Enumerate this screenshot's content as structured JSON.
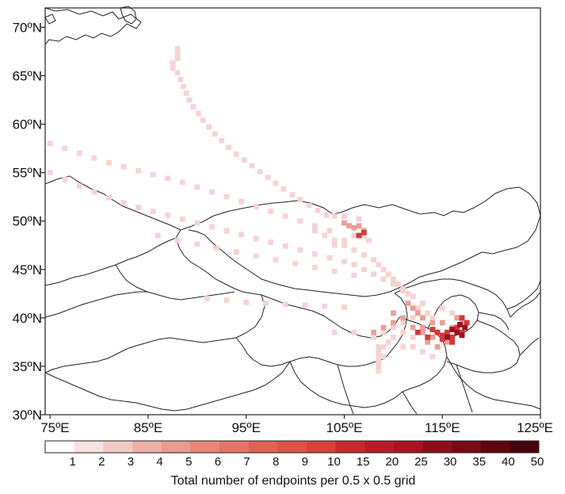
{
  "map": {
    "lon_range": [
      74.5,
      125
    ],
    "lat_range": [
      30,
      72
    ],
    "lon_ticks": [
      "75ºE",
      "85ºE",
      "95ºE",
      "105ºE",
      "115ºE",
      "125ºE"
    ],
    "lat_ticks": [
      "30ºN",
      "35ºN",
      "40ºN",
      "45ºN",
      "50ºN",
      "55ºN",
      "60ºN",
      "65ºN",
      "70ºN"
    ],
    "border_color": "#222222"
  },
  "colorbar": {
    "labels": [
      "1",
      "2",
      "3",
      "4",
      "5",
      "6",
      "7",
      "8",
      "9",
      "10",
      "15",
      "20",
      "25",
      "30",
      "35",
      "40",
      "50"
    ],
    "colors": [
      "#ffffff",
      "#f8e2e2",
      "#f3c9c6",
      "#efb0a8",
      "#eb9b8e",
      "#e88775",
      "#e47564",
      "#e06452",
      "#db5444",
      "#d54437",
      "#c8292b",
      "#b81d25",
      "#a5161f",
      "#8e0f1a",
      "#760a14",
      "#5e050f",
      "#46020a"
    ],
    "title": "Total number of endpoints per 0.5 x 0.5 grid"
  },
  "trajectory_cells": {
    "light": [
      [
        88,
        67.8
      ],
      [
        88,
        67.3
      ],
      [
        88,
        66.8
      ],
      [
        87.5,
        66.3
      ],
      [
        87.5,
        65.8
      ],
      [
        88,
        65.3
      ],
      [
        88.3,
        64.6
      ],
      [
        88.6,
        63.9
      ],
      [
        88.9,
        63.2
      ],
      [
        89.2,
        62.5
      ],
      [
        89.6,
        61.8
      ],
      [
        90.1,
        61.1
      ],
      [
        90.6,
        60.4
      ],
      [
        91.2,
        59.7
      ],
      [
        91.8,
        59.0
      ],
      [
        92.5,
        58.3
      ],
      [
        93.2,
        57.6
      ],
      [
        94.0,
        56.9
      ],
      [
        94.8,
        56.3
      ],
      [
        95.6,
        55.7
      ],
      [
        96.4,
        55.1
      ],
      [
        97.2,
        54.5
      ],
      [
        98.0,
        53.9
      ],
      [
        98.8,
        53.3
      ],
      [
        99.7,
        52.7
      ],
      [
        100.5,
        52.2
      ],
      [
        101.4,
        51.6
      ],
      [
        102.3,
        51.1
      ],
      [
        103.2,
        50.6
      ],
      [
        75,
        58
      ],
      [
        76.5,
        57.5
      ],
      [
        78,
        57
      ],
      [
        79.5,
        56.5
      ],
      [
        81,
        56
      ],
      [
        82.5,
        55.6
      ],
      [
        84,
        55.2
      ],
      [
        85.5,
        54.8
      ],
      [
        87,
        54.4
      ],
      [
        88.5,
        54
      ],
      [
        90,
        53.5
      ],
      [
        91.5,
        53
      ],
      [
        93,
        52.5
      ],
      [
        94.5,
        52
      ],
      [
        96,
        51.5
      ],
      [
        97.5,
        51
      ],
      [
        99,
        50.5
      ],
      [
        100.5,
        50
      ],
      [
        102,
        49.5
      ],
      [
        103.5,
        49
      ],
      [
        75,
        55
      ],
      [
        76.5,
        54.3
      ],
      [
        78,
        53.6
      ],
      [
        79.5,
        53
      ],
      [
        81,
        52.4
      ],
      [
        82.5,
        51.9
      ],
      [
        84,
        51.4
      ],
      [
        85.5,
        51
      ],
      [
        87,
        50.6
      ],
      [
        88.5,
        50.2
      ],
      [
        90,
        49.8
      ],
      [
        91.5,
        49.4
      ],
      [
        93,
        49
      ],
      [
        94.5,
        48.6
      ],
      [
        96,
        48.2
      ],
      [
        97.5,
        47.8
      ],
      [
        99,
        47.4
      ],
      [
        100.5,
        47
      ],
      [
        102,
        46.6
      ],
      [
        103.5,
        46.2
      ],
      [
        105,
        45.8
      ],
      [
        86,
        48.5
      ],
      [
        88,
        48
      ],
      [
        90,
        47.6
      ],
      [
        92,
        47.2
      ],
      [
        94,
        46.8
      ],
      [
        96,
        46.4
      ],
      [
        98,
        46
      ],
      [
        100,
        45.6
      ],
      [
        102,
        45.2
      ],
      [
        104,
        44.8
      ],
      [
        106,
        44.4
      ],
      [
        91,
        42
      ],
      [
        93,
        41.8
      ],
      [
        95,
        41.6
      ],
      [
        97,
        41.5
      ],
      [
        99,
        41.4
      ],
      [
        101,
        41.3
      ],
      [
        103,
        41.2
      ],
      [
        105,
        41.1
      ],
      [
        102,
        49
      ],
      [
        103,
        48.5
      ],
      [
        104,
        48
      ],
      [
        105,
        47.5
      ],
      [
        106,
        47
      ],
      [
        107,
        46.5
      ],
      [
        108,
        46
      ],
      [
        108.5,
        45.5
      ],
      [
        109,
        45
      ],
      [
        109.5,
        44.5
      ],
      [
        110,
        44
      ],
      [
        110.5,
        43.5
      ],
      [
        111,
        43
      ],
      [
        111.5,
        42.5
      ],
      [
        106,
        45.5
      ],
      [
        107,
        45
      ],
      [
        108,
        44.5
      ],
      [
        109,
        44
      ],
      [
        110,
        43.5
      ],
      [
        111,
        42.8
      ],
      [
        112,
        42.2
      ],
      [
        113,
        41.5
      ],
      [
        112.5,
        41
      ],
      [
        113.5,
        40.5
      ],
      [
        114,
        40
      ],
      [
        112,
        40
      ],
      [
        111,
        39.5
      ],
      [
        110,
        39
      ],
      [
        109,
        38.5
      ],
      [
        108,
        38
      ],
      [
        108.5,
        37
      ],
      [
        108.5,
        36.5
      ],
      [
        108.5,
        36
      ],
      [
        108.5,
        35.5
      ],
      [
        108.5,
        35
      ],
      [
        108.5,
        34.5
      ],
      [
        109.5,
        37.5
      ],
      [
        109,
        37
      ],
      [
        109,
        36
      ],
      [
        104,
        50.5
      ],
      [
        105,
        50.5
      ],
      [
        106.5,
        50.2
      ],
      [
        107,
        48.5
      ],
      [
        107.5,
        48
      ],
      [
        106,
        48.5
      ],
      [
        105,
        48
      ],
      [
        104,
        47.5
      ],
      [
        111,
        38.5
      ],
      [
        112,
        38
      ],
      [
        110,
        38
      ],
      [
        111,
        37
      ],
      [
        112,
        37
      ],
      [
        113,
        36.5
      ],
      [
        114,
        36
      ],
      [
        104,
        38.5
      ],
      [
        106,
        38.5
      ],
      [
        115,
        41
      ],
      [
        116,
        40.5
      ]
    ],
    "medium": [
      [
        105.5,
        49.5
      ],
      [
        106,
        49.3
      ],
      [
        106.5,
        49.5
      ],
      [
        107,
        49
      ],
      [
        105,
        49.8
      ],
      [
        112,
        41
      ],
      [
        111.5,
        41.5
      ],
      [
        112.5,
        40.5
      ],
      [
        113,
        40
      ],
      [
        114,
        39.5
      ],
      [
        115,
        39.5
      ],
      [
        116,
        39
      ],
      [
        113,
        38.5
      ],
      [
        114,
        38
      ],
      [
        115,
        38
      ],
      [
        112,
        39
      ],
      [
        113,
        39
      ],
      [
        111,
        40
      ],
      [
        110,
        40.5
      ],
      [
        116.5,
        40
      ],
      [
        117,
        39.5
      ],
      [
        113.5,
        37.5
      ],
      [
        114.5,
        37
      ],
      [
        115.5,
        37.5
      ],
      [
        108,
        38.5
      ],
      [
        109,
        39
      ],
      [
        110,
        39.5
      ]
    ],
    "strong": [
      [
        107,
        48.8
      ],
      [
        106.5,
        48.5
      ],
      [
        114.5,
        38.5
      ],
      [
        115.5,
        38.5
      ],
      [
        116.5,
        39
      ],
      [
        117,
        38.5
      ],
      [
        116,
        38
      ],
      [
        117.5,
        39.5
      ],
      [
        117,
        40
      ],
      [
        115,
        38.2
      ],
      [
        114,
        38.8
      ],
      [
        116,
        37.5
      ],
      [
        115,
        37.8
      ],
      [
        113.5,
        38
      ],
      [
        112.5,
        38.5
      ]
    ],
    "intense": [
      [
        116.5,
        38.5
      ],
      [
        117,
        38.2
      ],
      [
        117.3,
        39
      ],
      [
        116.8,
        39.3
      ],
      [
        115.5,
        38
      ],
      [
        116,
        38.8
      ]
    ]
  }
}
